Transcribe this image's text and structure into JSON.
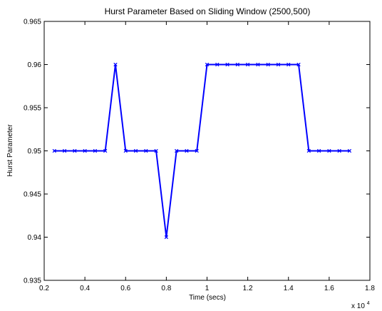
{
  "chart_data": {
    "type": "line",
    "title": "Hurst Parameter Based on Sliding Window (2500,500)",
    "xlabel": "Time  (secs)",
    "ylabel": "Hurst Parameter",
    "x_exponent_label": "x 10",
    "x_exponent_power": "4",
    "xlim": [
      0.2,
      1.8
    ],
    "ylim": [
      0.935,
      0.965
    ],
    "xticks": [
      "0.2",
      "0.4",
      "0.6",
      "0.8",
      "1",
      "1.2",
      "1.4",
      "1.6",
      "1.8"
    ],
    "yticks": [
      "0.935",
      "0.94",
      "0.945",
      "0.95",
      "0.955",
      "0.96",
      "0.965"
    ],
    "grid": false,
    "line_color": "#0000ff",
    "marker": "x",
    "series": [
      {
        "x": [
          0.25,
          0.3,
          0.35,
          0.4,
          0.45,
          0.5,
          0.55,
          0.6,
          0.65,
          0.7,
          0.75,
          0.8,
          0.85,
          0.9,
          0.95,
          1.0,
          1.05,
          1.1,
          1.15,
          1.2,
          1.25,
          1.3,
          1.35,
          1.4,
          1.45,
          1.5,
          1.55,
          1.6,
          1.65,
          1.7
        ],
        "values": [
          0.95,
          0.95,
          0.95,
          0.95,
          0.95,
          0.95,
          0.96,
          0.95,
          0.95,
          0.95,
          0.95,
          0.94,
          0.95,
          0.95,
          0.95,
          0.96,
          0.96,
          0.96,
          0.96,
          0.96,
          0.96,
          0.96,
          0.96,
          0.96,
          0.96,
          0.95,
          0.95,
          0.95,
          0.95,
          0.95
        ]
      }
    ]
  }
}
